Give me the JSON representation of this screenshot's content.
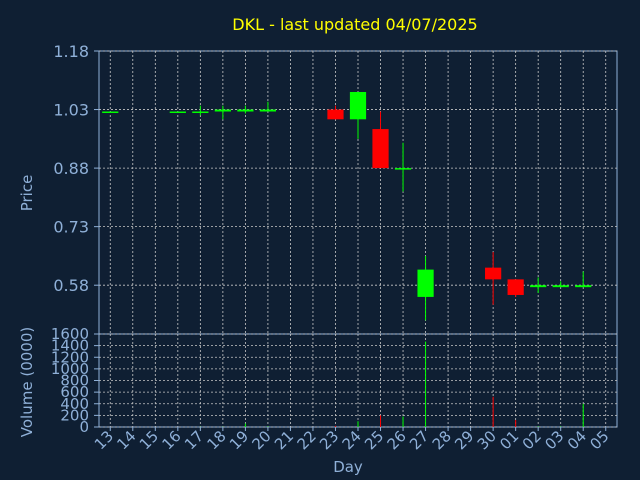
{
  "chart_data": {
    "type": "candlestick",
    "title": "DKL - last updated 04/07/2025",
    "xlabel": "Day",
    "ylabel": "Price",
    "volume_label": "Volume (0000)",
    "categories": [
      "13",
      "14",
      "15",
      "16",
      "17",
      "18",
      "19",
      "20",
      "21",
      "22",
      "23",
      "24",
      "25",
      "26",
      "27",
      "28",
      "29",
      "30",
      "01",
      "02",
      "03",
      "04",
      "05"
    ],
    "price_ylim": [
      0.455,
      1.18
    ],
    "price_ticks": [
      "1.18",
      "1.03",
      "0.88",
      "0.73",
      "0.58"
    ],
    "volume_ylim": [
      0,
      1600
    ],
    "volume_ticks": [
      "0",
      "200",
      "400",
      "600",
      "800",
      "1000",
      "1200",
      "1400",
      "1600"
    ],
    "grid": true,
    "candles": [
      {
        "day": "13",
        "open": 1.025,
        "close": 1.025,
        "high": 1.025,
        "low": 1.025,
        "volume": 0
      },
      {
        "day": "16",
        "open": 1.025,
        "close": 1.025,
        "high": 1.025,
        "low": 1.025,
        "volume": 0
      },
      {
        "day": "17",
        "open": 1.025,
        "close": 1.025,
        "high": 1.04,
        "low": 1.015,
        "volume": 5
      },
      {
        "day": "18",
        "open": 1.025,
        "close": 1.03,
        "high": 1.04,
        "low": 1.005,
        "volume": 5
      },
      {
        "day": "19",
        "open": 1.025,
        "close": 1.03,
        "high": 1.04,
        "low": 1.02,
        "volume": 60
      },
      {
        "day": "20",
        "open": 1.025,
        "close": 1.03,
        "high": 1.05,
        "low": 1.025,
        "volume": 10
      },
      {
        "day": "23",
        "open": 1.03,
        "close": 1.005,
        "high": 1.04,
        "low": 1.005,
        "volume": 20
      },
      {
        "day": "24",
        "open": 1.005,
        "close": 1.075,
        "high": 1.075,
        "low": 0.955,
        "volume": 100
      },
      {
        "day": "25",
        "open": 0.98,
        "close": 0.88,
        "high": 1.025,
        "low": 0.88,
        "volume": 200
      },
      {
        "day": "26",
        "open": 0.88,
        "close": 0.88,
        "high": 0.945,
        "low": 0.82,
        "volume": 180
      },
      {
        "day": "27",
        "open": 0.55,
        "close": 0.62,
        "high": 0.655,
        "low": 0.49,
        "volume": 1470
      },
      {
        "day": "30",
        "open": 0.625,
        "close": 0.595,
        "high": 0.665,
        "low": 0.53,
        "volume": 520
      },
      {
        "day": "01",
        "open": 0.595,
        "close": 0.555,
        "high": 0.595,
        "low": 0.55,
        "volume": 120
      },
      {
        "day": "02",
        "open": 0.575,
        "close": 0.58,
        "high": 0.6,
        "low": 0.56,
        "volume": 10
      },
      {
        "day": "03",
        "open": 0.575,
        "close": 0.58,
        "high": 0.59,
        "low": 0.575,
        "volume": 10
      },
      {
        "day": "04",
        "open": 0.575,
        "close": 0.58,
        "high": 0.615,
        "low": 0.575,
        "volume": 400
      }
    ],
    "colors": {
      "background": "#0f1f33",
      "axis_text": "#8fb0d8",
      "title": "#ffff00",
      "up": "#00ff00",
      "down": "#ff0000",
      "grid": "#c8c8c8"
    }
  }
}
